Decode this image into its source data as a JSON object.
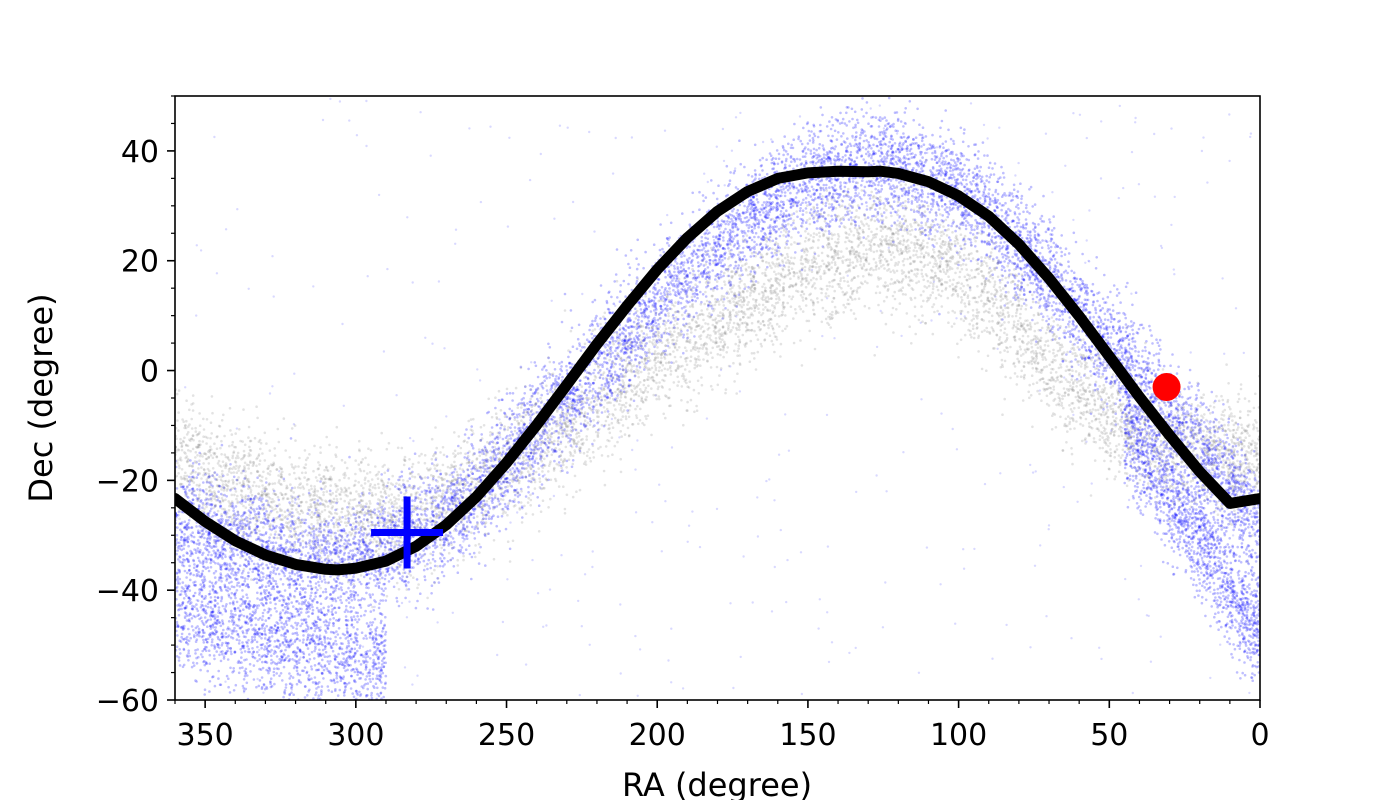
{
  "chart_data": {
    "type": "scatter",
    "title": "",
    "xlabel": "RA (degree)",
    "ylabel": "Dec (degree)",
    "xlim": [
      360,
      0
    ],
    "ylim": [
      -60,
      50
    ],
    "x_inverted": true,
    "grid": false,
    "legend": "none",
    "xticks": [
      350,
      300,
      250,
      200,
      150,
      100,
      50,
      0
    ],
    "yticks": [
      40,
      20,
      0,
      -20,
      -40,
      -60
    ],
    "xtick_labels": [
      "350",
      "300",
      "250",
      "200",
      "150",
      "100",
      "50",
      "0"
    ],
    "ytick_labels": [
      "40",
      "20",
      "0",
      "−20",
      "−40",
      "−60"
    ],
    "series": [
      {
        "kind": "scatter-density",
        "color": "#0000ff",
        "opacity": 0.25,
        "ridge": [
          [
            360,
            -27
          ],
          [
            340,
            -31
          ],
          [
            320,
            -34
          ],
          [
            300,
            -35
          ],
          [
            285,
            -31
          ],
          [
            270,
            -27
          ],
          [
            255,
            -20
          ],
          [
            240,
            -10
          ],
          [
            225,
            -2
          ],
          [
            210,
            6
          ],
          [
            195,
            15
          ],
          [
            180,
            23
          ],
          [
            165,
            29
          ],
          [
            150,
            34
          ],
          [
            135,
            37
          ],
          [
            120,
            37
          ],
          [
            105,
            34
          ],
          [
            95,
            31
          ],
          [
            85,
            26
          ],
          [
            75,
            20
          ],
          [
            65,
            14
          ],
          [
            55,
            7
          ],
          [
            45,
            2
          ],
          [
            35,
            -4
          ],
          [
            25,
            -11
          ],
          [
            15,
            -18
          ],
          [
            5,
            -25
          ],
          [
            0,
            -28
          ]
        ],
        "lower_branch": [
          [
            360,
            -43
          ],
          [
            340,
            -46
          ],
          [
            320,
            -50
          ],
          [
            300,
            -52
          ],
          [
            290,
            -52
          ]
        ],
        "right_branch": [
          [
            45,
            -10
          ],
          [
            30,
            -22
          ],
          [
            15,
            -35
          ],
          [
            5,
            -45
          ],
          [
            0,
            -48
          ]
        ]
      },
      {
        "kind": "scatter-density",
        "color": "#808080",
        "opacity": 0.22,
        "ridge": [
          [
            360,
            -15
          ],
          [
            345,
            -20
          ],
          [
            330,
            -23
          ],
          [
            315,
            -25
          ],
          [
            300,
            -26
          ],
          [
            285,
            -27
          ],
          [
            270,
            -24
          ],
          [
            255,
            -19
          ],
          [
            240,
            -13
          ],
          [
            225,
            -8
          ],
          [
            210,
            -2
          ],
          [
            195,
            4
          ],
          [
            180,
            9
          ],
          [
            165,
            14
          ],
          [
            150,
            18
          ],
          [
            135,
            21
          ],
          [
            120,
            22
          ],
          [
            105,
            19
          ],
          [
            90,
            13
          ],
          [
            75,
            5
          ],
          [
            60,
            -4
          ],
          [
            45,
            -10
          ],
          [
            30,
            -14
          ],
          [
            15,
            -15
          ],
          [
            0,
            -16
          ]
        ]
      },
      {
        "kind": "curve",
        "color": "#000000",
        "x": [
          360,
          350,
          340,
          330,
          320,
          310,
          306,
          300,
          290,
          280,
          270,
          260,
          250,
          240,
          230,
          220,
          210,
          200,
          190,
          180,
          170,
          160,
          150,
          140,
          130,
          126,
          120,
          110,
          100,
          90,
          80,
          70,
          60,
          50,
          40,
          30,
          20,
          10,
          0
        ],
        "y": [
          -23.3,
          -27.5,
          -31.0,
          -33.6,
          -35.3,
          -36.2,
          -36.3,
          -36.0,
          -34.7,
          -32.0,
          -28.1,
          -23.0,
          -16.8,
          -9.9,
          -2.6,
          4.8,
          11.8,
          18.4,
          24.2,
          29.0,
          32.6,
          35.0,
          36.0,
          36.3,
          36.2,
          36.3,
          35.9,
          34.4,
          31.8,
          28.1,
          23.0,
          16.8,
          9.9,
          2.6,
          -4.8,
          -11.8,
          -18.4,
          -24.2,
          -23.3
        ]
      },
      {
        "kind": "marker",
        "shape": "plus",
        "color": "#0000ff",
        "x": 283,
        "y": -29.5
      },
      {
        "kind": "marker",
        "shape": "circle",
        "color": "#ff0000",
        "x": 31,
        "y": -3
      }
    ]
  }
}
